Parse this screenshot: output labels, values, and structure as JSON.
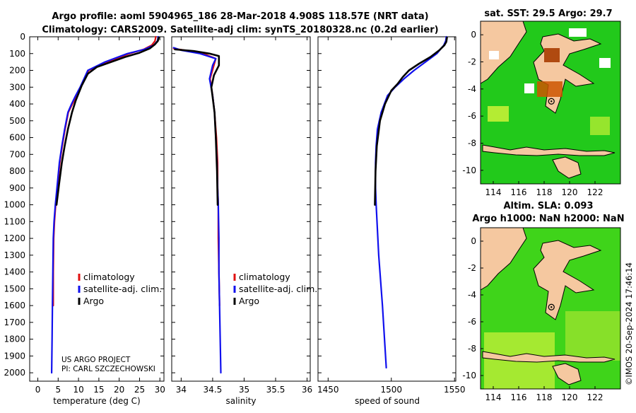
{
  "header": {
    "title_line1": "Argo profile: aoml 5904965_186 28-Mar-2018 4.908S 118.57E (NRT data)",
    "title_line2": "Climatology: CARS2009. Satellite-adj clim: synTS_20180328.nc (0.2d earlier)"
  },
  "colors": {
    "climatology": "#e01010",
    "satellite": "#1010ee",
    "argo": "#000000",
    "land": "#f5c8a0",
    "sea_high": "#00cc00",
    "sea_low": "#d9f53a",
    "warm": "#cc5500"
  },
  "legend": {
    "climatology": "climatology",
    "satellite": "satellite-adj. clim.",
    "argo": "Argo"
  },
  "credit": {
    "line1": "US ARGO PROJECT",
    "line2": "PI: CARL SZCZECHOWSKI"
  },
  "stamp": "©IMOS 20-Sep-2024 17:46:14",
  "maps": {
    "sst_title": "sat. SST: 29.5 Argo: 29.7",
    "sla_title_line1": "Altim. SLA: 0.093",
    "sla_title_line2": "Argo h1000: NaN h2000: NaN",
    "lon_ticks": [
      "114",
      "116",
      "118",
      "120",
      "122"
    ],
    "lat_ticks": [
      "0",
      "-2",
      "-4",
      "-6",
      "-8",
      "-10"
    ],
    "lon_values": [
      114,
      116,
      118,
      120,
      122
    ],
    "lat_values": [
      0,
      -2,
      -4,
      -6,
      -8,
      -10
    ],
    "lon_range": [
      113,
      124
    ],
    "lat_range": [
      -11,
      1
    ],
    "float_lon": 118.57,
    "float_lat": -4.908
  },
  "chart_data": [
    {
      "type": "line",
      "xlabel": "temperature (deg C)",
      "ylabel": "",
      "xlim": [
        -2,
        31
      ],
      "ylim": [
        2050,
        0
      ],
      "x_ticks": [
        0,
        5,
        10,
        15,
        20,
        25,
        30
      ],
      "x_tick_labels": [
        "0",
        "5",
        "10",
        "15",
        "20",
        "25",
        "30"
      ],
      "y_ticks": [
        0,
        100,
        200,
        300,
        400,
        500,
        600,
        700,
        800,
        900,
        1000,
        1100,
        1200,
        1300,
        1400,
        1500,
        1600,
        1700,
        1800,
        1900,
        2000
      ],
      "y_tick_labels": [
        "0",
        "100",
        "200",
        "300",
        "400",
        "500",
        "600",
        "700",
        "800",
        "900",
        "1000",
        "1100",
        "1200",
        "1300",
        "1400",
        "1500",
        "1600",
        "1700",
        "1800",
        "1900",
        "2000"
      ],
      "series": [
        {
          "name": "climatology",
          "x": [
            29.0,
            28.8,
            28.0,
            26.0,
            22.5,
            17.0,
            12.5,
            10.5,
            9.5,
            8.5,
            7.5,
            6.7,
            6.0,
            5.4,
            4.8,
            4.4,
            4.1,
            3.9,
            3.8,
            3.8
          ],
          "y": [
            0,
            25,
            50,
            75,
            100,
            150,
            200,
            300,
            350,
            400,
            450,
            550,
            650,
            750,
            900,
            1000,
            1100,
            1200,
            1400,
            1600
          ]
        },
        {
          "name": "satellite-adj. clim.",
          "x": [
            29.6,
            29.4,
            28.5,
            26.2,
            22.0,
            16.5,
            12.3,
            10.4,
            9.3,
            8.3,
            7.4,
            6.6,
            5.9,
            5.3,
            4.7,
            4.3,
            4.0,
            3.8,
            3.7,
            3.6,
            3.5,
            3.4
          ],
          "y": [
            0,
            25,
            50,
            75,
            100,
            150,
            200,
            300,
            350,
            400,
            450,
            550,
            650,
            750,
            900,
            1000,
            1100,
            1200,
            1400,
            1600,
            1800,
            2000
          ]
        },
        {
          "name": "Argo",
          "x": [
            29.7,
            29.5,
            28.8,
            27.5,
            25.0,
            21.5,
            18.0,
            14.5,
            12.3,
            10.8,
            9.3,
            8.4,
            7.4,
            6.6,
            5.9,
            5.2,
            4.6
          ],
          "y": [
            5,
            25,
            45,
            70,
            95,
            120,
            150,
            180,
            220,
            290,
            380,
            450,
            550,
            650,
            750,
            880,
            1000
          ]
        }
      ]
    },
    {
      "type": "line",
      "xlabel": "salinity",
      "ylabel": "",
      "xlim": [
        33.85,
        36.05
      ],
      "ylim": [
        2050,
        0
      ],
      "x_ticks": [
        34,
        34.5,
        35,
        35.5,
        36
      ],
      "x_tick_labels": [
        "34",
        "34.5",
        "35",
        "35.5",
        "36"
      ],
      "series": [
        {
          "name": "climatology",
          "x": [
            33.88,
            34.05,
            34.35,
            34.55,
            34.52,
            34.46,
            34.5,
            34.53,
            34.56,
            34.58,
            34.58,
            34.59,
            34.59,
            34.6,
            34.61
          ],
          "y": [
            70,
            80,
            100,
            130,
            170,
            250,
            350,
            450,
            600,
            750,
            900,
            1000,
            1200,
            1400,
            1600
          ]
        },
        {
          "name": "satellite-adj. clim.",
          "x": [
            33.88,
            34.0,
            34.3,
            34.55,
            34.5,
            34.45,
            34.5,
            34.53,
            34.55,
            34.57,
            34.58,
            34.59,
            34.6,
            34.6,
            34.61,
            34.62,
            34.63
          ],
          "y": [
            65,
            80,
            100,
            130,
            170,
            250,
            350,
            450,
            600,
            750,
            900,
            1000,
            1200,
            1400,
            1600,
            1800,
            2000
          ]
        },
        {
          "name": "Argo",
          "x": [
            33.9,
            34.2,
            34.45,
            34.6,
            34.6,
            34.52,
            34.48,
            34.5,
            34.53,
            34.55,
            34.57,
            34.58
          ],
          "y": [
            75,
            85,
            100,
            115,
            170,
            230,
            300,
            360,
            450,
            600,
            800,
            1000
          ]
        }
      ]
    },
    {
      "type": "line",
      "xlabel": "speed of sound",
      "ylabel": "",
      "xlim": [
        1442,
        1551
      ],
      "ylim": [
        2050,
        0
      ],
      "x_ticks": [
        1450,
        1500,
        1550
      ],
      "x_tick_labels": [
        "1450",
        "1500",
        "1550"
      ],
      "series": [
        {
          "name": "satellite-adj. clim.",
          "x": [
            1543.5,
            1543.0,
            1541.5,
            1536,
            1527,
            1518,
            1510,
            1503,
            1497,
            1492,
            1489,
            1488,
            1487.5,
            1487.5,
            1488,
            1490,
            1493,
            1496
          ],
          "y": [
            0,
            25,
            50,
            100,
            150,
            200,
            250,
            300,
            350,
            450,
            550,
            650,
            750,
            900,
            1000,
            1300,
            1600,
            1970
          ]
        },
        {
          "name": "Argo",
          "x": [
            1544,
            1543.5,
            1542,
            1538,
            1531,
            1522,
            1514,
            1509,
            1505,
            1500,
            1495,
            1491,
            1488.5,
            1487.5,
            1487
          ],
          "y": [
            5,
            30,
            50,
            80,
            120,
            160,
            200,
            240,
            280,
            320,
            400,
            500,
            650,
            800,
            1000
          ]
        }
      ]
    }
  ]
}
